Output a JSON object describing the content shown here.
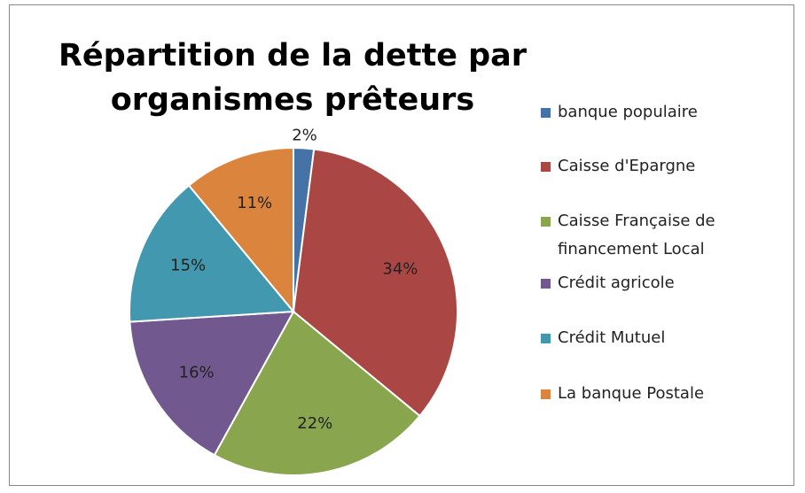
{
  "chart_data": {
    "type": "pie",
    "title": "Répartition de la dette par organismes prêteurs",
    "categories": [
      "banque populaire",
      "Caisse d'Epargne",
      "Caisse Française de financement Local",
      "Crédit agricole",
      "Crédit Mutuel",
      "La banque Postale"
    ],
    "values": [
      2,
      34,
      22,
      16,
      15,
      11
    ],
    "value_labels": [
      "2%",
      "34%",
      "22%",
      "16%",
      "15%",
      "11%"
    ],
    "colors": [
      "#4572a7",
      "#aa4643",
      "#89a54e",
      "#71588f",
      "#4198af",
      "#db843d"
    ],
    "legend": "right"
  }
}
